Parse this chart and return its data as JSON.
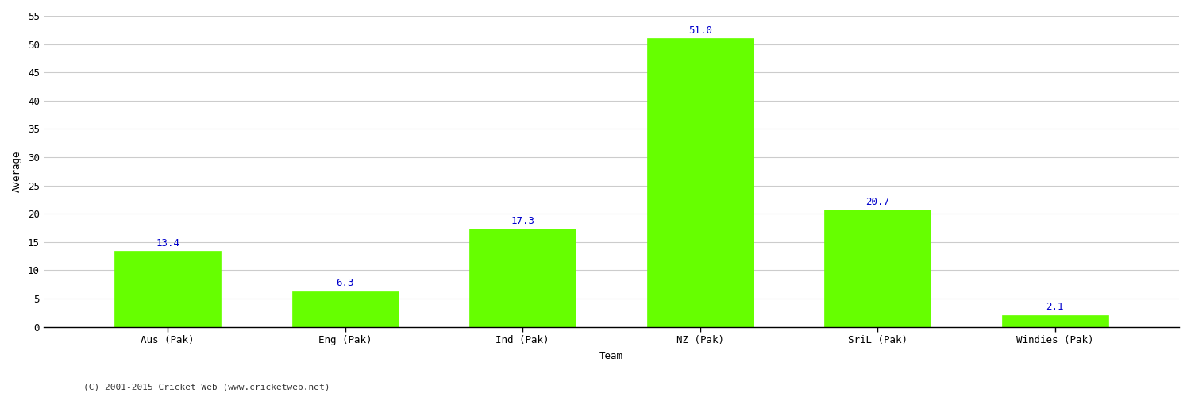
{
  "categories": [
    "Aus (Pak)",
    "Eng (Pak)",
    "Ind (Pak)",
    "NZ (Pak)",
    "SriL (Pak)",
    "Windies (Pak)"
  ],
  "values": [
    13.4,
    6.3,
    17.3,
    51.0,
    20.7,
    2.1
  ],
  "bar_color": "#66ff00",
  "bar_edge_color": "#66ff00",
  "label_color": "#0000cc",
  "ylabel": "Average",
  "xlabel": "Team",
  "ylim": [
    0,
    55
  ],
  "yticks": [
    0,
    5,
    10,
    15,
    20,
    25,
    30,
    35,
    40,
    45,
    50,
    55
  ],
  "grid_color": "#cccccc",
  "background_color": "#ffffff",
  "footnote": "(C) 2001-2015 Cricket Web (www.cricketweb.net)",
  "label_fontsize": 9,
  "axis_label_fontsize": 9,
  "tick_fontsize": 9,
  "footnote_fontsize": 8
}
